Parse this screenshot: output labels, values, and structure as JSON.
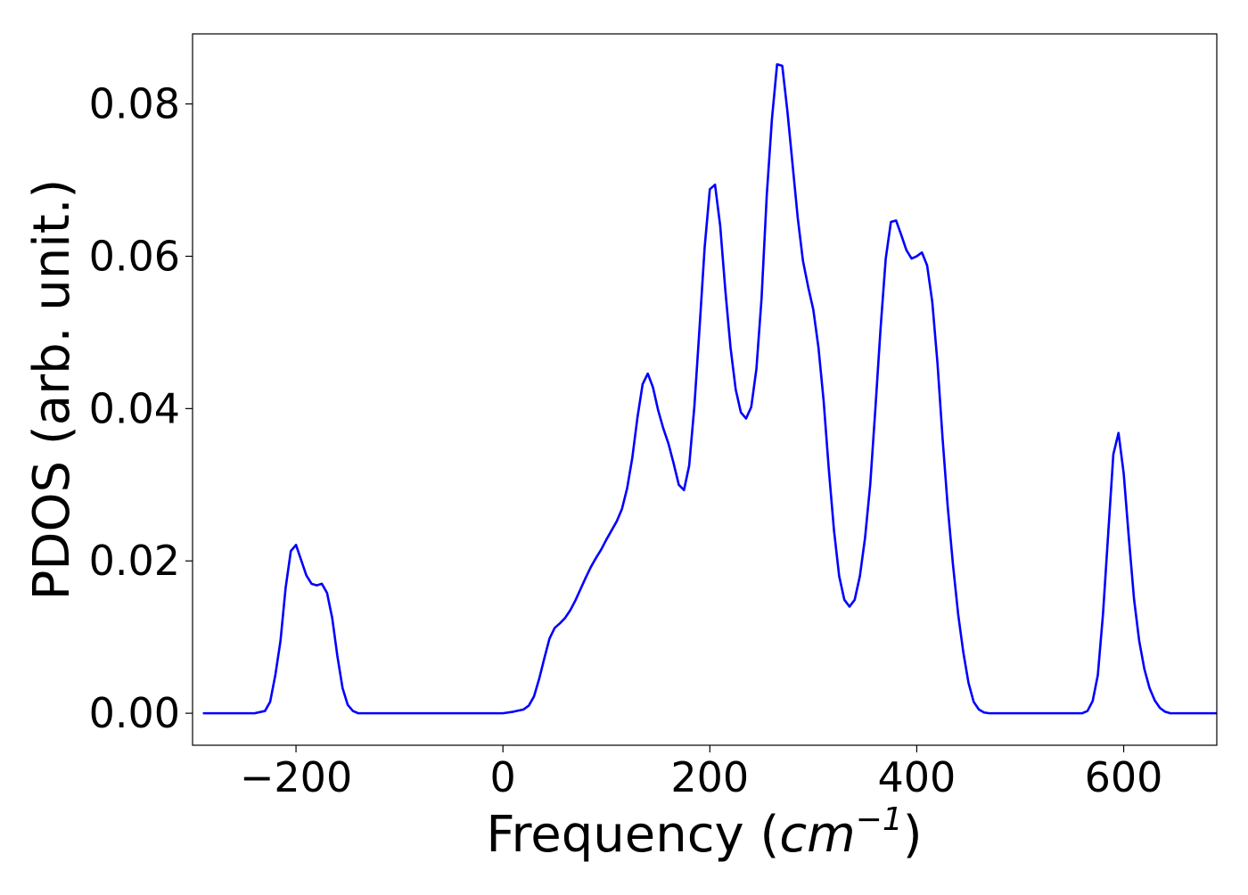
{
  "chart_data": {
    "type": "line",
    "xlabel_prefix": "Frequency (",
    "xlabel_unit": "cm",
    "xlabel_exponent": "−1",
    "xlabel_suffix": ")",
    "ylabel": "PDOS (arb. unit.)",
    "xlim": [
      -300,
      690
    ],
    "ylim": [
      -0.0042,
      0.0892
    ],
    "xticks": [
      -200,
      0,
      200,
      400,
      600
    ],
    "xtick_labels": [
      "−200",
      "0",
      "200",
      "400",
      "600"
    ],
    "yticks": [
      0.0,
      0.02,
      0.04,
      0.06,
      0.08
    ],
    "ytick_labels": [
      "0.00",
      "0.02",
      "0.04",
      "0.06",
      "0.08"
    ],
    "grid": false,
    "legend": "none",
    "line_color": "#0000ff",
    "series": [
      {
        "points": [
          [
            -290,
            0.0
          ],
          [
            -280,
            0.0
          ],
          [
            -270,
            0.0
          ],
          [
            -260,
            0.0
          ],
          [
            -250,
            0.0
          ],
          [
            -240,
            0.0
          ],
          [
            -230,
            0.0003
          ],
          [
            -225,
            0.0015
          ],
          [
            -220,
            0.005
          ],
          [
            -215,
            0.0095
          ],
          [
            -210,
            0.0165
          ],
          [
            -205,
            0.0213
          ],
          [
            -200,
            0.0221
          ],
          [
            -195,
            0.0201
          ],
          [
            -190,
            0.0181
          ],
          [
            -185,
            0.017
          ],
          [
            -180,
            0.0168
          ],
          [
            -175,
            0.017
          ],
          [
            -170,
            0.0158
          ],
          [
            -165,
            0.0125
          ],
          [
            -160,
            0.0075
          ],
          [
            -155,
            0.0033
          ],
          [
            -150,
            0.0011
          ],
          [
            -145,
            0.0003
          ],
          [
            -140,
            0.0
          ],
          [
            -120,
            0.0
          ],
          [
            -100,
            0.0
          ],
          [
            -80,
            0.0
          ],
          [
            -60,
            0.0
          ],
          [
            -40,
            0.0
          ],
          [
            -20,
            0.0
          ],
          [
            0,
            0.0
          ],
          [
            10,
            0.0002
          ],
          [
            20,
            0.0005
          ],
          [
            25,
            0.001
          ],
          [
            30,
            0.0022
          ],
          [
            35,
            0.0045
          ],
          [
            40,
            0.0072
          ],
          [
            45,
            0.0098
          ],
          [
            50,
            0.0112
          ],
          [
            55,
            0.0118
          ],
          [
            60,
            0.0125
          ],
          [
            65,
            0.0135
          ],
          [
            70,
            0.0148
          ],
          [
            75,
            0.0163
          ],
          [
            80,
            0.0178
          ],
          [
            85,
            0.0192
          ],
          [
            90,
            0.0204
          ],
          [
            95,
            0.0215
          ],
          [
            100,
            0.0228
          ],
          [
            105,
            0.024
          ],
          [
            110,
            0.0252
          ],
          [
            115,
            0.0268
          ],
          [
            120,
            0.0295
          ],
          [
            125,
            0.0335
          ],
          [
            130,
            0.0388
          ],
          [
            135,
            0.0432
          ],
          [
            140,
            0.0446
          ],
          [
            145,
            0.0428
          ],
          [
            150,
            0.0398
          ],
          [
            155,
            0.0374
          ],
          [
            160,
            0.0354
          ],
          [
            165,
            0.0328
          ],
          [
            170,
            0.03
          ],
          [
            175,
            0.0293
          ],
          [
            180,
            0.0325
          ],
          [
            185,
            0.0402
          ],
          [
            190,
            0.0505
          ],
          [
            195,
            0.0612
          ],
          [
            200,
            0.0688
          ],
          [
            205,
            0.0694
          ],
          [
            210,
            0.064
          ],
          [
            215,
            0.0555
          ],
          [
            220,
            0.048
          ],
          [
            225,
            0.0425
          ],
          [
            230,
            0.0395
          ],
          [
            235,
            0.0387
          ],
          [
            240,
            0.0402
          ],
          [
            245,
            0.0452
          ],
          [
            250,
            0.0545
          ],
          [
            255,
            0.068
          ],
          [
            260,
            0.078
          ],
          [
            265,
            0.0852
          ],
          [
            270,
            0.085
          ],
          [
            275,
            0.079
          ],
          [
            280,
            0.072
          ],
          [
            285,
            0.065
          ],
          [
            290,
            0.0594
          ],
          [
            295,
            0.056
          ],
          [
            300,
            0.053
          ],
          [
            305,
            0.048
          ],
          [
            310,
            0.041
          ],
          [
            315,
            0.032
          ],
          [
            320,
            0.024
          ],
          [
            325,
            0.018
          ],
          [
            330,
            0.0149
          ],
          [
            335,
            0.014
          ],
          [
            340,
            0.0149
          ],
          [
            345,
            0.018
          ],
          [
            350,
            0.023
          ],
          [
            355,
            0.03
          ],
          [
            360,
            0.04
          ],
          [
            365,
            0.0505
          ],
          [
            370,
            0.0597
          ],
          [
            375,
            0.0645
          ],
          [
            380,
            0.0647
          ],
          [
            385,
            0.0628
          ],
          [
            390,
            0.0608
          ],
          [
            395,
            0.0597
          ],
          [
            400,
            0.06
          ],
          [
            405,
            0.0605
          ],
          [
            410,
            0.0588
          ],
          [
            415,
            0.054
          ],
          [
            420,
            0.046
          ],
          [
            425,
            0.036
          ],
          [
            430,
            0.027
          ],
          [
            435,
            0.0195
          ],
          [
            440,
            0.013
          ],
          [
            445,
            0.008
          ],
          [
            450,
            0.004
          ],
          [
            455,
            0.0015
          ],
          [
            460,
            0.0005
          ],
          [
            465,
            0.0001
          ],
          [
            470,
            0.0
          ],
          [
            490,
            0.0
          ],
          [
            510,
            0.0
          ],
          [
            530,
            0.0
          ],
          [
            550,
            0.0
          ],
          [
            560,
            0.0
          ],
          [
            565,
            0.0003
          ],
          [
            570,
            0.0016
          ],
          [
            575,
            0.005
          ],
          [
            580,
            0.013
          ],
          [
            585,
            0.0235
          ],
          [
            590,
            0.034
          ],
          [
            595,
            0.0368
          ],
          [
            600,
            0.0315
          ],
          [
            605,
            0.023
          ],
          [
            610,
            0.015
          ],
          [
            615,
            0.0095
          ],
          [
            620,
            0.0058
          ],
          [
            625,
            0.0033
          ],
          [
            630,
            0.0017
          ],
          [
            635,
            0.0007
          ],
          [
            640,
            0.0002
          ],
          [
            645,
            0.0
          ],
          [
            660,
            0.0
          ],
          [
            675,
            0.0
          ],
          [
            690,
            0.0
          ]
        ]
      }
    ]
  }
}
